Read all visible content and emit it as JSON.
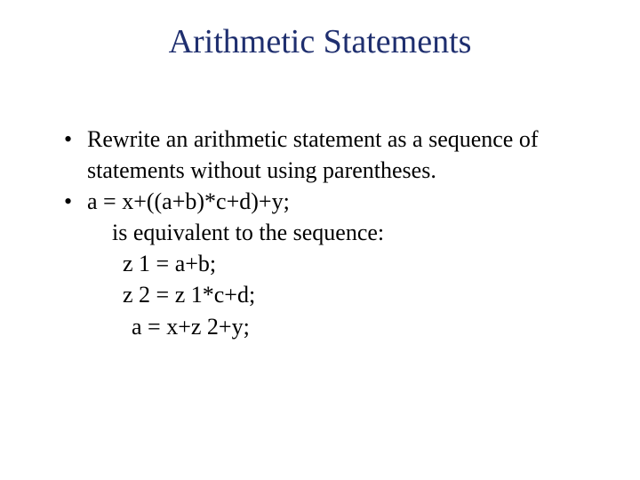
{
  "slide": {
    "title": "Arithmetic Statements",
    "title_color": "#1f2f6f",
    "body_color": "#000000",
    "background_color": "#ffffff",
    "title_fontsize": 38,
    "body_fontsize": 26,
    "bullets": [
      {
        "text": "Rewrite an arithmetic statement as a sequence of statements without using parentheses."
      },
      {
        "text": "a = x+((a+b)*c+d)+y;",
        "sublines": [
          {
            "text": "is equivalent to the sequence:",
            "indent": 0
          },
          {
            "text": "z 1 = a+b;",
            "indent": 1
          },
          {
            "text": "z 2 = z 1*c+d;",
            "indent": 1
          },
          {
            "text": "a = x+z 2+y;",
            "indent": 2
          }
        ]
      }
    ]
  }
}
